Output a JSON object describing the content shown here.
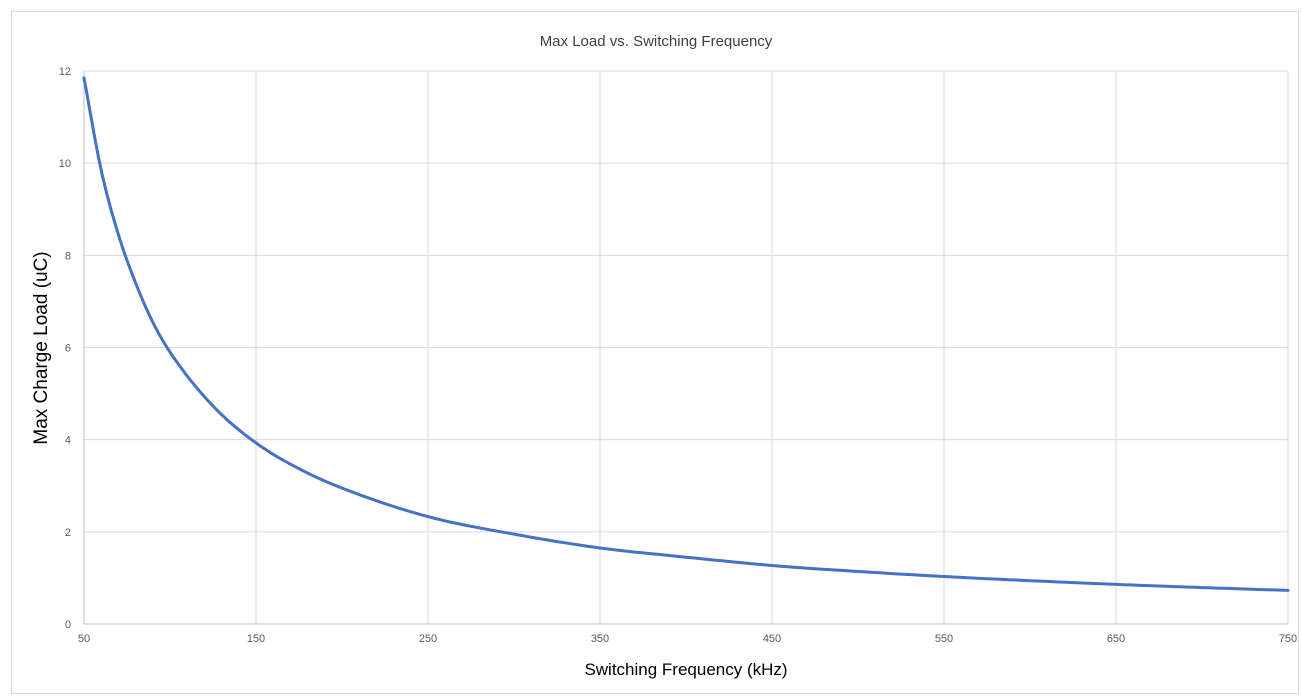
{
  "chart_data": {
    "type": "line",
    "title": "Max Load vs. Switching Frequency",
    "xlabel": "Switching Frequency (kHz)",
    "ylabel": "Max Charge Load (uC)",
    "xlim": [
      50,
      750
    ],
    "ylim": [
      0,
      12
    ],
    "x_ticks": [
      "50",
      "150",
      "250",
      "350",
      "450",
      "550",
      "650",
      "750"
    ],
    "y_ticks": [
      "0",
      "2",
      "4",
      "6",
      "8",
      "10",
      "12"
    ],
    "grid": true,
    "legend": "none",
    "series": [
      {
        "color": "#4472C4",
        "x": [
          50,
          60,
          70,
          80,
          90,
          100,
          125,
          150,
          175,
          200,
          250,
          300,
          350,
          400,
          450,
          500,
          550,
          600,
          650,
          700,
          750
        ],
        "values": [
          11.85,
          9.85,
          8.45,
          7.4,
          6.55,
          5.9,
          4.73,
          3.93,
          3.37,
          2.95,
          2.33,
          1.95,
          1.65,
          1.45,
          1.27,
          1.14,
          1.03,
          0.94,
          0.86,
          0.79,
          0.73
        ]
      }
    ]
  }
}
